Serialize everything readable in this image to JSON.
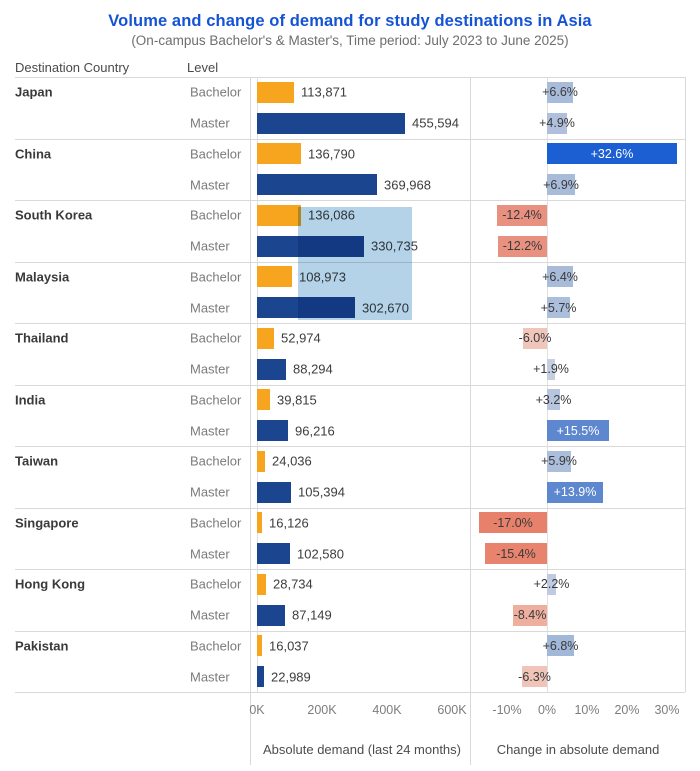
{
  "title": "Volume and change of demand for study destinations in Asia",
  "subtitle": "(On-campus Bachelor's & Master's, Time period: July 2023 to June 2025)",
  "columns": {
    "country": "Destination Country",
    "level": "Level"
  },
  "colors": {
    "title": "#1553d6",
    "bachelor_bar": "#F7A41F",
    "master_bar": "#1C4590",
    "selection_highlight": "#b5d3e8",
    "grid": "#d9d9d9",
    "label_dark": "#3a3a3a",
    "label_gray": "#7b7b7b"
  },
  "selection_highlight": {
    "color": "#b5d3e8"
  },
  "axes": {
    "volume": {
      "title": "Absolute demand (last 24 months)",
      "ticks": [
        {
          "label": "0K",
          "value": 0
        },
        {
          "label": "200K",
          "value": 200000
        },
        {
          "label": "400K",
          "value": 400000
        },
        {
          "label": "600K",
          "value": 600000
        }
      ]
    },
    "change": {
      "title": "Change in absolute demand",
      "ticks": [
        {
          "label": "-10%",
          "value": -10
        },
        {
          "label": "0%",
          "value": 0
        },
        {
          "label": "10%",
          "value": 10
        },
        {
          "label": "20%",
          "value": 20
        },
        {
          "label": "30%",
          "value": 30
        }
      ]
    }
  },
  "rows": [
    {
      "country": "Japan",
      "levels": [
        {
          "level": "Bachelor",
          "demand": 113871,
          "demand_label": "113,871",
          "change": 6.6,
          "change_label": "+6.6%",
          "bar_color": "#F7A41F",
          "change_color": "#a8bcda",
          "change_text_color": "#3a3a3a"
        },
        {
          "level": "Master",
          "demand": 455594,
          "demand_label": "455,594",
          "change": 4.9,
          "change_label": "+4.9%",
          "bar_color": "#1C4590",
          "change_color": "#b0c0dc",
          "change_text_color": "#3a3a3a"
        }
      ]
    },
    {
      "country": "China",
      "levels": [
        {
          "level": "Bachelor",
          "demand": 136790,
          "demand_label": "136,790",
          "change": 32.6,
          "change_label": "+32.6%",
          "bar_color": "#F7A41F",
          "change_color": "#1b5fd2",
          "change_text_color": "#ffffff"
        },
        {
          "level": "Master",
          "demand": 369968,
          "demand_label": "369,968",
          "change": 6.9,
          "change_label": "+6.9%",
          "bar_color": "#1C4590",
          "change_color": "#a8bcda",
          "change_text_color": "#3a3a3a"
        }
      ]
    },
    {
      "country": "South Korea",
      "levels": [
        {
          "level": "Bachelor",
          "demand": 136086,
          "demand_label": "136,086",
          "change": -12.4,
          "change_label": "-12.4%",
          "bar_color": "#F7A41F",
          "change_color": "#e99181",
          "change_text_color": "#3a3a3a"
        },
        {
          "level": "Master",
          "demand": 330735,
          "demand_label": "330,735",
          "change": -12.2,
          "change_label": "-12.2%",
          "bar_color": "#1C4590",
          "change_color": "#e99181",
          "change_text_color": "#3a3a3a"
        }
      ]
    },
    {
      "country": "Malaysia",
      "levels": [
        {
          "level": "Bachelor",
          "demand": 108973,
          "demand_label": "108,973",
          "change": 6.4,
          "change_label": "+6.4%",
          "bar_color": "#F7A41F",
          "change_color": "#a8bcda",
          "change_text_color": "#3a3a3a"
        },
        {
          "level": "Master",
          "demand": 302670,
          "demand_label": "302,670",
          "change": 5.7,
          "change_label": "+5.7%",
          "bar_color": "#1C4590",
          "change_color": "#abbedb",
          "change_text_color": "#3a3a3a"
        }
      ]
    },
    {
      "country": "Thailand",
      "levels": [
        {
          "level": "Bachelor",
          "demand": 52974,
          "demand_label": "52,974",
          "change": -6.0,
          "change_label": "-6.0%",
          "bar_color": "#F7A41F",
          "change_color": "#f0c6bb",
          "change_text_color": "#3a3a3a"
        },
        {
          "level": "Master",
          "demand": 88294,
          "demand_label": "88,294",
          "change": 1.9,
          "change_label": "+1.9%",
          "bar_color": "#1C4590",
          "change_color": "#c6cfe2",
          "change_text_color": "#3a3a3a"
        }
      ]
    },
    {
      "country": "India",
      "levels": [
        {
          "level": "Bachelor",
          "demand": 39815,
          "demand_label": "39,815",
          "change": 3.2,
          "change_label": "+3.2%",
          "bar_color": "#F7A41F",
          "change_color": "#b8c5de",
          "change_text_color": "#3a3a3a"
        },
        {
          "level": "Master",
          "demand": 96216,
          "demand_label": "96,216",
          "change": 15.5,
          "change_label": "+15.5%",
          "bar_color": "#1C4590",
          "change_color": "#5d87ce",
          "change_text_color": "#ffffff"
        }
      ]
    },
    {
      "country": "Taiwan",
      "levels": [
        {
          "level": "Bachelor",
          "demand": 24036,
          "demand_label": "24,036",
          "change": 5.9,
          "change_label": "+5.9%",
          "bar_color": "#F7A41F",
          "change_color": "#abbedb",
          "change_text_color": "#3a3a3a"
        },
        {
          "level": "Master",
          "demand": 105394,
          "demand_label": "105,394",
          "change": 13.9,
          "change_label": "+13.9%",
          "bar_color": "#1C4590",
          "change_color": "#5d87ce",
          "change_text_color": "#ffffff"
        }
      ]
    },
    {
      "country": "Singapore",
      "levels": [
        {
          "level": "Bachelor",
          "demand": 16126,
          "demand_label": "16,126",
          "change": -17.0,
          "change_label": "-17.0%",
          "bar_color": "#F7A41F",
          "change_color": "#e8816b",
          "change_text_color": "#3a3a3a"
        },
        {
          "level": "Master",
          "demand": 102580,
          "demand_label": "102,580",
          "change": -15.4,
          "change_label": "-15.4%",
          "bar_color": "#1C4590",
          "change_color": "#e8836d",
          "change_text_color": "#3a3a3a"
        }
      ]
    },
    {
      "country": "Hong Kong",
      "levels": [
        {
          "level": "Bachelor",
          "demand": 28734,
          "demand_label": "28,734",
          "change": 2.2,
          "change_label": "+2.2%",
          "bar_color": "#F7A41F",
          "change_color": "#c0cae0",
          "change_text_color": "#3a3a3a"
        },
        {
          "level": "Master",
          "demand": 87149,
          "demand_label": "87,149",
          "change": -8.4,
          "change_label": "-8.4%",
          "bar_color": "#1C4590",
          "change_color": "#eeaf9f",
          "change_text_color": "#3a3a3a"
        }
      ]
    },
    {
      "country": "Pakistan",
      "levels": [
        {
          "level": "Bachelor",
          "demand": 16037,
          "demand_label": "16,037",
          "change": 6.8,
          "change_label": "+6.8%",
          "bar_color": "#F7A41F",
          "change_color": "#a2b8d8",
          "change_text_color": "#3a3a3a"
        },
        {
          "level": "Master",
          "demand": 22989,
          "demand_label": "22,989",
          "change": -6.3,
          "change_label": "-6.3%",
          "bar_color": "#1C4590",
          "change_color": "#f0c4b8",
          "change_text_color": "#3a3a3a"
        }
      ]
    }
  ],
  "chart_data": {
    "type": "bar",
    "title": "Volume and change of demand for study destinations in Asia",
    "subtitle": "(On-campus Bachelor's & Master's, Time period: July 2023 to June 2025)",
    "categories": [
      "Japan",
      "China",
      "South Korea",
      "Malaysia",
      "Thailand",
      "India",
      "Taiwan",
      "Singapore",
      "Hong Kong",
      "Pakistan"
    ],
    "series": [
      {
        "name": "Bachelor",
        "demand": [
          113871,
          136790,
          136086,
          108973,
          52974,
          39815,
          24036,
          16126,
          28734,
          16037
        ],
        "change_pct": [
          6.6,
          32.6,
          -12.4,
          6.4,
          -6.0,
          3.2,
          5.9,
          -17.0,
          2.2,
          6.8
        ]
      },
      {
        "name": "Master",
        "demand": [
          455594,
          369968,
          330735,
          302670,
          88294,
          96216,
          105394,
          102580,
          87149,
          22989
        ],
        "change_pct": [
          4.9,
          6.9,
          -12.2,
          5.7,
          1.9,
          15.5,
          13.9,
          -15.4,
          -8.4,
          -6.3
        ]
      }
    ],
    "panels": [
      {
        "xlabel": "Absolute demand (last 24 months)",
        "x_ticks": [
          "0K",
          "200K",
          "400K",
          "600K"
        ],
        "xlim": [
          0,
          660000
        ],
        "grid": false
      },
      {
        "xlabel": "Change in absolute demand",
        "x_ticks": [
          "-10%",
          "0%",
          "10%",
          "20%",
          "30%"
        ],
        "xlim": [
          -22.5,
          34.5
        ],
        "grid": false
      }
    ],
    "legend": "none"
  }
}
